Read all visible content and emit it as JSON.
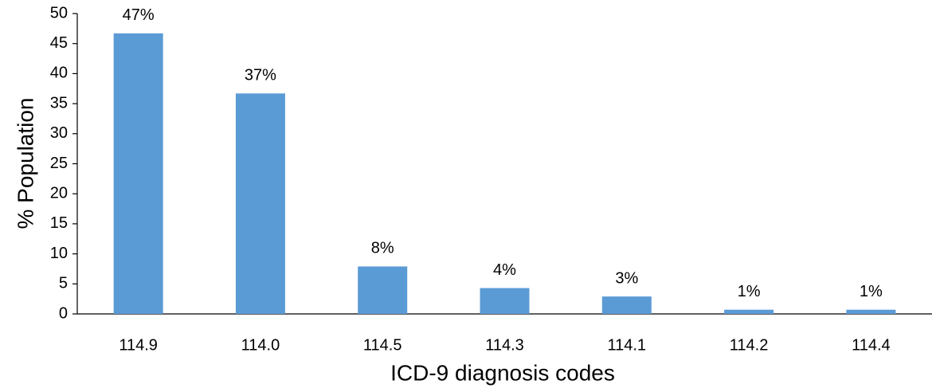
{
  "chart_data": {
    "type": "bar",
    "x_label": "ICD-9 diagnosis codes",
    "y_label": "% Population",
    "categories": [
      "114.9",
      "114.0",
      "114.5",
      "114.3",
      "114.1",
      "114.2",
      "114.4"
    ],
    "values": [
      46.7,
      36.7,
      7.9,
      4.3,
      2.9,
      0.7,
      0.7
    ],
    "value_labels": [
      "47%",
      "37%",
      "8%",
      "4%",
      "3%",
      "1%",
      "1%"
    ],
    "color": "#5b9bd5",
    "ylim": [
      0,
      50
    ],
    "yticks": [
      0,
      5,
      10,
      15,
      20,
      25,
      30,
      35,
      40,
      45,
      50
    ],
    "grid": false
  }
}
